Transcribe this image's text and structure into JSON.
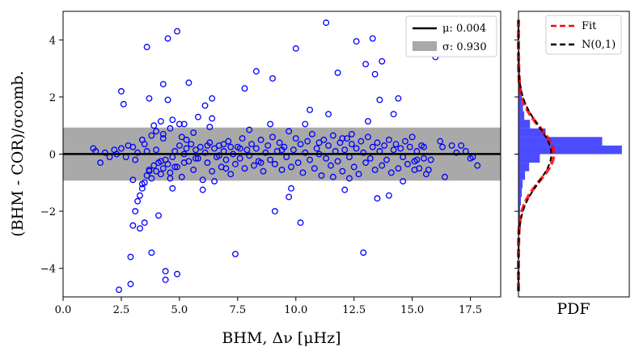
{
  "chart_data": [
    {
      "type": "scatter",
      "xlabel": "BHM, Δν [μHz]",
      "ylabel": "(BHM - COR)/σcomb.",
      "xlim": [
        0,
        18.8
      ],
      "ylim": [
        -5,
        5
      ],
      "xticks": [
        "0.0",
        "2.5",
        "5.0",
        "7.5",
        "10.0",
        "12.5",
        "15.0",
        "17.5"
      ],
      "yticks": [
        "−4",
        "−2",
        "0",
        "2",
        "4"
      ],
      "grid": false,
      "legend_position": "top-right",
      "legend": [
        {
          "label": "μ: 0.004",
          "style": "line",
          "color": "#000000"
        },
        {
          "label": "σ: 0.930",
          "style": "patch",
          "color": "#a9a9a9"
        }
      ],
      "mean": 0.004,
      "sigma": 0.93,
      "marker_color": "#0000ff",
      "points": {
        "x": [
          2.4,
          2.9,
          4.4,
          4.9,
          2.5,
          2.6,
          4.5,
          5.4,
          3.6,
          4.9,
          4.3,
          4.5,
          6.1,
          6.4,
          6.3,
          5.0,
          4.7,
          3.7,
          3.9,
          4.0,
          4.2,
          4.3,
          4.6,
          5.1,
          5.3,
          5.6,
          3.3,
          3.5,
          3.8,
          2.9,
          3.0,
          3.1,
          3.2,
          3.0,
          3.3,
          3.4,
          3.5,
          3.6,
          3.7,
          3.8,
          3.9,
          4.0,
          4.1,
          4.2,
          4.3,
          4.4,
          4.5,
          4.6,
          4.7,
          4.8,
          4.9,
          5.0,
          5.1,
          5.2,
          5.3,
          5.4,
          5.5,
          5.6,
          5.7,
          5.8,
          5.9,
          6.0,
          6.1,
          6.2,
          6.3,
          6.4,
          6.5,
          6.6,
          6.7,
          6.8,
          6.9,
          7.0,
          7.1,
          7.2,
          7.3,
          7.4,
          7.5,
          7.6,
          7.7,
          7.8,
          7.9,
          8.0,
          8.1,
          8.2,
          8.3,
          8.4,
          8.5,
          8.6,
          8.7,
          8.8,
          8.9,
          9.0,
          9.1,
          9.2,
          9.3,
          9.4,
          9.5,
          9.6,
          9.7,
          9.8,
          9.9,
          10.0,
          10.1,
          10.2,
          10.3,
          10.4,
          10.5,
          10.6,
          10.7,
          10.8,
          10.9,
          11.0,
          11.1,
          11.2,
          11.3,
          11.4,
          11.5,
          11.6,
          11.7,
          11.8,
          11.9,
          12.0,
          12.1,
          12.2,
          12.3,
          12.4,
          12.5,
          12.6,
          12.7,
          12.8,
          12.9,
          13.0,
          13.1,
          13.2,
          13.3,
          13.4,
          13.5,
          13.6,
          13.7,
          13.8,
          13.9,
          14.0,
          14.1,
          14.2,
          14.3,
          14.4,
          14.5,
          14.6,
          14.7,
          14.8,
          14.9,
          15.0,
          15.1,
          15.2,
          15.3,
          15.4,
          15.5,
          15.6,
          15.7,
          15.8,
          16.0,
          16.2,
          16.4,
          16.7,
          17.1,
          17.3,
          17.5,
          17.8,
          1.3,
          1.4,
          1.6,
          1.8,
          2.0,
          2.2,
          2.3,
          2.5,
          2.7,
          2.8,
          3.0,
          3.1,
          3.2,
          3.4,
          3.6,
          4.2,
          4.4,
          4.7,
          5.2,
          5.8,
          6.4,
          6.9,
          7.2,
          7.4,
          7.8,
          8.3,
          8.9,
          9.0,
          9.1,
          9.7,
          9.8,
          10.0,
          10.2,
          10.6,
          11.0,
          11.3,
          11.4,
          11.8,
          12.1,
          12.4,
          12.6,
          12.9,
          13.0,
          13.3,
          13.4,
          13.6,
          13.7,
          14.2,
          14.4,
          15.2,
          15.5,
          3.4,
          3.5,
          3.7,
          4.3,
          4.6,
          5.2,
          4.1,
          6.0,
          6.5,
          3.8,
          4.0,
          4.8,
          5.7,
          6.2,
          6.7,
          7.0,
          7.6,
          8.0,
          8.5,
          9.4,
          10.4,
          11.6,
          12.0,
          12.3,
          13.1,
          13.5,
          14.0,
          14.6,
          15.1,
          16.3,
          16.9,
          17.6
        ],
        "y": [
          -4.75,
          -4.55,
          -4.4,
          -4.2,
          2.2,
          1.75,
          4.05,
          2.5,
          3.75,
          4.3,
          2.45,
          1.9,
          1.7,
          1.25,
          0.95,
          1.05,
          1.2,
          1.95,
          1.0,
          0.8,
          1.15,
          0.7,
          0.9,
          0.6,
          0.5,
          0.75,
          -2.6,
          -2.4,
          -3.45,
          -3.6,
          -2.5,
          -2.0,
          -1.65,
          -0.9,
          -1.45,
          -1.2,
          -1.0,
          -0.75,
          -0.55,
          -0.85,
          -0.4,
          -0.6,
          -0.3,
          -0.7,
          -0.5,
          -0.2,
          -0.35,
          -0.65,
          -0.1,
          0.1,
          -0.45,
          0.3,
          -0.8,
          0.0,
          0.2,
          -0.25,
          0.35,
          -0.55,
          0.15,
          -0.15,
          0.25,
          -0.9,
          0.05,
          -0.3,
          0.4,
          -0.6,
          0.2,
          -0.1,
          0.3,
          -0.45,
          0.1,
          -0.2,
          0.45,
          -0.7,
          0.0,
          -0.35,
          0.25,
          -0.15,
          0.55,
          -0.5,
          0.15,
          -0.05,
          0.35,
          -0.4,
          0.2,
          -0.25,
          0.5,
          -0.6,
          0.05,
          0.3,
          -0.2,
          0.6,
          -0.35,
          0.1,
          0.4,
          -0.55,
          0.25,
          -0.1,
          0.8,
          -0.45,
          0.15,
          0.55,
          -0.3,
          0.35,
          -0.65,
          0.05,
          0.45,
          -0.2,
          0.7,
          -0.5,
          0.2,
          0.0,
          -0.75,
          0.5,
          -0.15,
          0.3,
          -0.4,
          0.65,
          0.1,
          -0.25,
          0.4,
          -0.6,
          0.15,
          0.55,
          -0.1,
          0.35,
          -0.45,
          0.2,
          -0.7,
          0.45,
          0.05,
          -0.3,
          0.6,
          -0.15,
          0.25,
          -0.55,
          0.4,
          0.1,
          -0.4,
          0.3,
          -0.2,
          0.5,
          -0.65,
          0.15,
          0.35,
          -0.5,
          0.2,
          -0.1,
          0.45,
          -0.35,
          0.25,
          0.6,
          -0.25,
          0.1,
          -0.5,
          0.3,
          -0.15,
          -0.7,
          -0.55,
          -0.2,
          3.4,
          0.45,
          -0.8,
          0.3,
          0.3,
          0.1,
          -0.15,
          -0.4,
          0.2,
          0.1,
          -0.3,
          0.05,
          -0.1,
          0.15,
          0.0,
          0.2,
          -0.1,
          0.3,
          0.25,
          -0.2,
          0.05,
          0.5,
          0.1,
          -0.25,
          -4.1,
          -1.2,
          1.05,
          1.3,
          1.95,
          0.35,
          0.25,
          -3.5,
          2.3,
          2.9,
          1.05,
          2.65,
          -2.0,
          -1.5,
          -1.2,
          3.7,
          -2.4,
          1.55,
          0.4,
          4.6,
          1.4,
          2.85,
          -1.25,
          0.7,
          3.95,
          -3.45,
          3.15,
          4.05,
          2.8,
          1.9,
          3.25,
          1.4,
          1.95,
          -0.2,
          0.25,
          -1.05,
          0.35,
          -0.6,
          0.55,
          -0.85,
          -0.3,
          -2.15,
          -1.25,
          -0.95,
          0.65,
          0.15,
          -0.45,
          -0.15,
          0.3,
          -0.05,
          -0.5,
          0.2,
          0.85,
          -0.3,
          0.15,
          1.05,
          -0.8,
          0.55,
          -0.85,
          1.15,
          -1.55,
          -1.45,
          -0.95,
          -0.55,
          0.25,
          0.05,
          -0.1
        ]
      }
    },
    {
      "type": "histogram",
      "xlabel": "PDF",
      "orientation": "horizontal",
      "legend_position": "top",
      "legend": [
        {
          "label": "Fit",
          "style": "dashed-line",
          "color": "#ff0000"
        },
        {
          "label": "N(0,1)",
          "style": "dashed-line",
          "color": "#000000"
        }
      ],
      "bin_color": "#0000ff",
      "fit_color": "#ff0000",
      "reference_color": "#000000",
      "ylim": [
        -5,
        5
      ],
      "bin_edges": [
        -4.8,
        -4.5,
        -4.2,
        -3.9,
        -3.6,
        -3.3,
        -3.0,
        -2.7,
        -2.4,
        -2.1,
        -1.8,
        -1.5,
        -1.2,
        -0.9,
        -0.6,
        -0.3,
        0.0,
        0.3,
        0.6,
        0.9,
        1.2,
        1.5,
        1.8,
        2.1,
        2.4,
        2.7,
        3.0,
        3.3,
        3.6,
        3.9,
        4.2,
        4.5
      ],
      "densities": [
        0.01,
        0.005,
        0.01,
        0.005,
        0.01,
        0.008,
        0.01,
        0.012,
        0.02,
        0.02,
        0.03,
        0.04,
        0.05,
        0.08,
        0.13,
        0.26,
        1.26,
        1.02,
        0.33,
        0.14,
        0.07,
        0.055,
        0.04,
        0.03,
        0.025,
        0.02,
        0.015,
        0.01,
        0.01,
        0.008,
        0.007
      ]
    }
  ]
}
